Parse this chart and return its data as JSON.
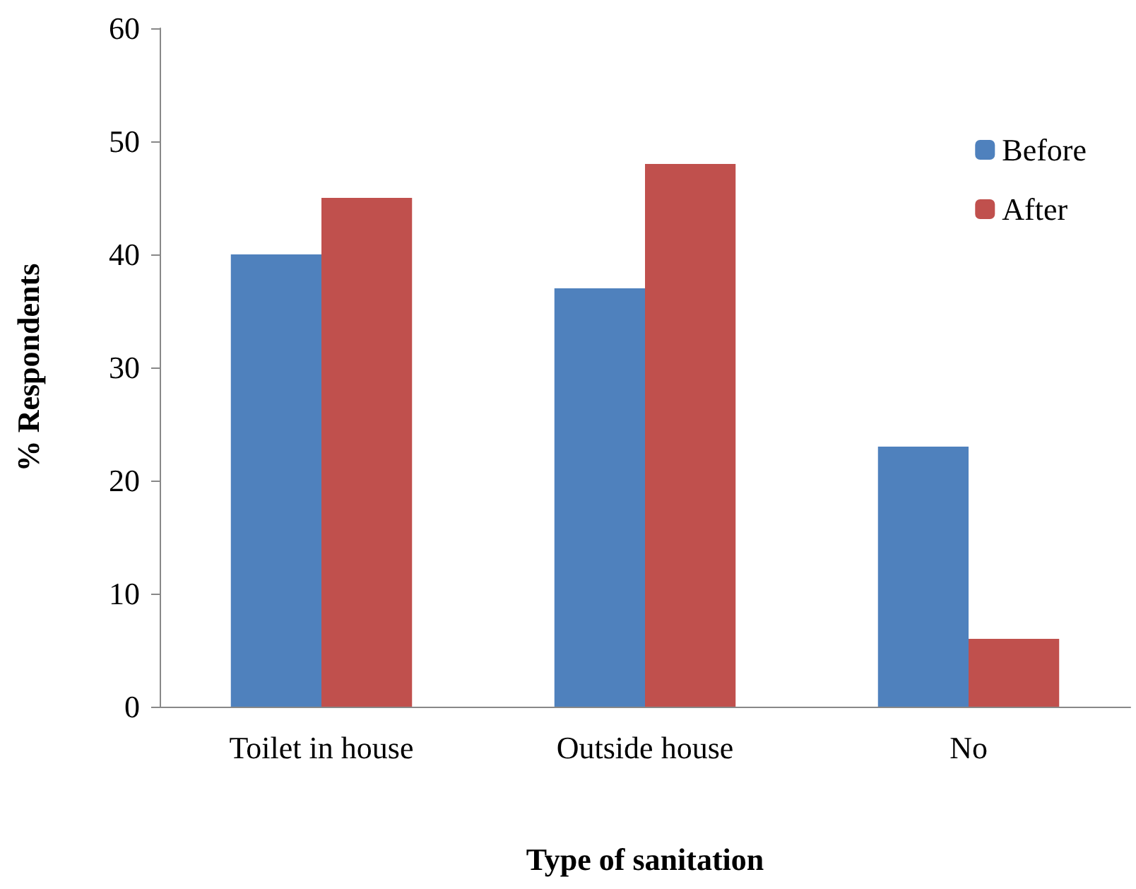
{
  "chart_data": {
    "type": "bar",
    "xlabel": "Type of sanitation",
    "ylabel": "% Respondents",
    "categories": [
      "Toilet in house",
      "Outside house",
      "No"
    ],
    "series": [
      {
        "name": "Before",
        "color": "#4f81bd",
        "values": [
          40,
          37,
          23
        ]
      },
      {
        "name": "After",
        "color": "#c0504d",
        "values": [
          45,
          48,
          6
        ]
      }
    ],
    "ylim": [
      0,
      60
    ],
    "yticks": [
      0,
      10,
      20,
      30,
      40,
      50,
      60
    ],
    "grid": false,
    "legend": "top right"
  }
}
